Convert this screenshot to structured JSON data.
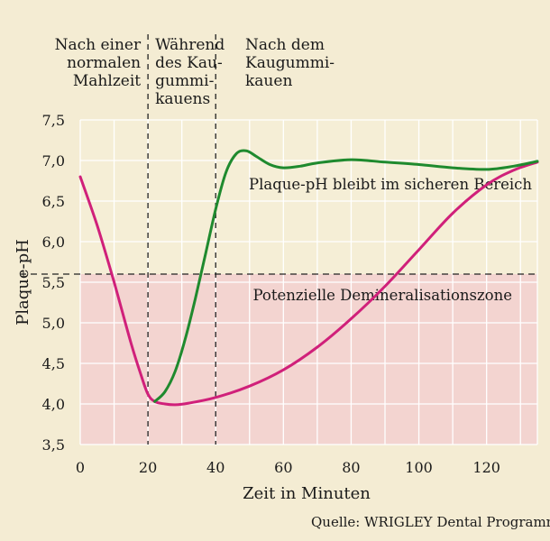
{
  "chart_data": {
    "type": "line",
    "xlabel": "Zeit in Minuten",
    "ylabel": "Plaque-pH",
    "xlim": [
      0,
      135
    ],
    "ylim": [
      3.5,
      7.5
    ],
    "x_ticks": [
      0,
      20,
      40,
      60,
      80,
      100,
      120
    ],
    "y_ticks": [
      "3,5",
      "4,0",
      "4,5",
      "5,0",
      "5,5",
      "6,0",
      "6,5",
      "7,0",
      "7,5"
    ],
    "y_tick_values": [
      3.5,
      4.0,
      4.5,
      5.0,
      5.5,
      6.0,
      6.5,
      7.0,
      7.5
    ],
    "grid": true,
    "threshold": 5.6,
    "phase_dividers": [
      20,
      40
    ],
    "phases": [
      {
        "lines": [
          "Nach einer",
          "normalen",
          "Mahlzeit"
        ]
      },
      {
        "lines": [
          "Während",
          "des Kau-",
          "gummi-",
          "kauens"
        ]
      },
      {
        "lines": [
          "Nach dem",
          "Kaugummi-",
          "kauen"
        ]
      }
    ],
    "annotations": {
      "safe_zone": "Plaque-pH bleibt im sicheren Bereich",
      "danger_zone": "Potenzielle Demineralisationszone"
    },
    "series": [
      {
        "color": "#d0207a",
        "x": [
          0,
          5,
          10,
          15,
          18,
          20,
          22,
          25,
          28,
          32,
          40,
          50,
          60,
          70,
          80,
          90,
          100,
          110,
          120,
          128,
          135
        ],
        "y": [
          6.8,
          6.2,
          5.5,
          4.75,
          4.35,
          4.12,
          4.03,
          4.0,
          3.99,
          4.01,
          4.08,
          4.22,
          4.42,
          4.7,
          5.05,
          5.45,
          5.9,
          6.35,
          6.7,
          6.88,
          6.98
        ]
      },
      {
        "color": "#1f8a2e",
        "x": [
          22,
          25,
          28,
          31,
          34,
          37,
          40,
          43,
          46,
          49,
          52,
          56,
          60,
          65,
          70,
          80,
          90,
          100,
          110,
          120,
          128,
          135
        ],
        "y": [
          4.03,
          4.15,
          4.4,
          4.8,
          5.3,
          5.85,
          6.4,
          6.85,
          7.08,
          7.12,
          7.05,
          6.95,
          6.91,
          6.93,
          6.97,
          7.01,
          6.98,
          6.95,
          6.91,
          6.89,
          6.93,
          6.99
        ]
      }
    ]
  },
  "source": "Quelle: WRIGLEY Dental Programm"
}
